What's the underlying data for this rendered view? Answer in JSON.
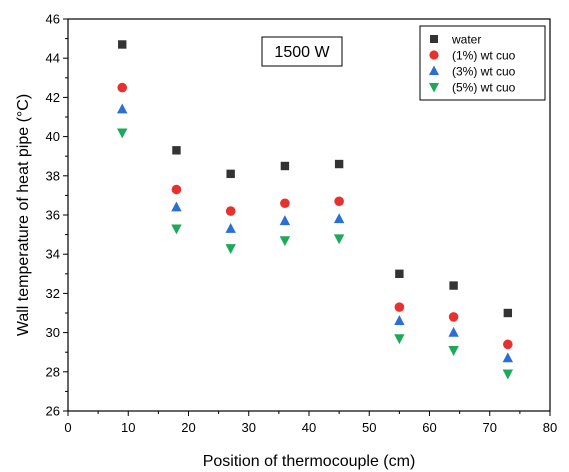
{
  "chart_data": {
    "type": "scatter",
    "title": "",
    "xlabel": "Position of thermocouple (cm)",
    "ylabel": "Wall temperature of heat pipe (°C)",
    "xlim": [
      0,
      80
    ],
    "ylim": [
      26,
      46
    ],
    "x_ticks": [
      0,
      10,
      20,
      30,
      40,
      50,
      60,
      70,
      80
    ],
    "y_ticks": [
      26,
      28,
      30,
      32,
      34,
      36,
      38,
      40,
      42,
      44,
      46
    ],
    "grid": false,
    "legend_position": "top-right",
    "annotation": "1500 W",
    "x": [
      9,
      18,
      27,
      36,
      45,
      55,
      64,
      73
    ],
    "series": [
      {
        "name": "water",
        "marker": "square",
        "color": "#333333",
        "values": [
          44.7,
          39.3,
          38.1,
          38.5,
          38.6,
          33.0,
          32.4,
          31.0
        ]
      },
      {
        "name": "(1%) wt cuo",
        "marker": "circle",
        "color": "#e8302e",
        "values": [
          42.5,
          37.3,
          36.2,
          36.6,
          36.7,
          31.3,
          30.8,
          29.4
        ]
      },
      {
        "name": "(3%) wt cuo",
        "marker": "triangle-up",
        "color": "#2a6fd6",
        "values": [
          41.4,
          36.4,
          35.3,
          35.7,
          35.8,
          30.6,
          30.0,
          28.7
        ]
      },
      {
        "name": "(5%) wt cuo",
        "marker": "triangle-down",
        "color": "#1ea85a",
        "values": [
          40.2,
          35.3,
          34.3,
          34.7,
          34.8,
          29.7,
          29.1,
          27.9
        ]
      }
    ]
  }
}
